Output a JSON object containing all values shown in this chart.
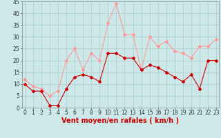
{
  "x": [
    0,
    1,
    2,
    3,
    4,
    5,
    6,
    7,
    8,
    9,
    10,
    11,
    12,
    13,
    14,
    15,
    16,
    17,
    18,
    19,
    20,
    21,
    22,
    23
  ],
  "wind_mean": [
    10,
    7,
    7,
    1,
    1,
    8,
    13,
    14,
    13,
    11,
    23,
    23,
    21,
    21,
    16,
    18,
    17,
    15,
    13,
    11,
    14,
    8,
    20,
    20
  ],
  "wind_gust": [
    12,
    9,
    8,
    5,
    7,
    20,
    25,
    16,
    23,
    20,
    36,
    44,
    31,
    31,
    16,
    30,
    26,
    28,
    24,
    23,
    21,
    26,
    26,
    29
  ],
  "bg_color": "#cce8e8",
  "grid_color": "#aacccc",
  "mean_color": "#cc0000",
  "gust_color": "#ff9999",
  "xlabel": "Vent moyen/en rafales ( km/h )",
  "xlabel_color": "#cc0000",
  "ylim": [
    0,
    45
  ],
  "yticks": [
    0,
    5,
    10,
    15,
    20,
    25,
    30,
    35,
    40,
    45
  ],
  "xticks": [
    0,
    1,
    2,
    3,
    4,
    5,
    6,
    7,
    8,
    9,
    10,
    11,
    12,
    13,
    14,
    15,
    16,
    17,
    18,
    19,
    20,
    21,
    22,
    23
  ],
  "tick_fontsize": 5.5,
  "xlabel_fontsize": 7,
  "figsize": [
    3.2,
    2.0
  ],
  "dpi": 100
}
